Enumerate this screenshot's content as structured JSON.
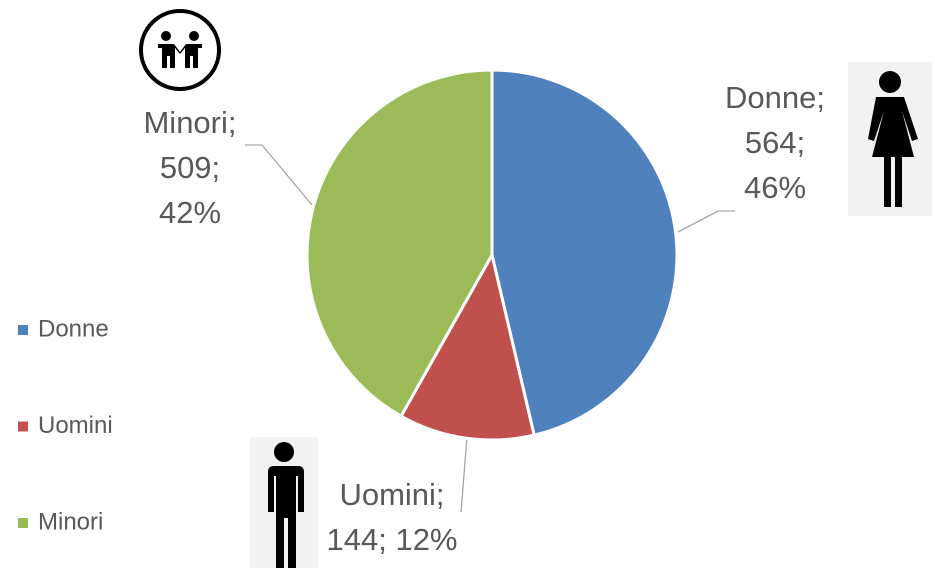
{
  "chart_data": {
    "type": "pie",
    "categories": [
      "Donne",
      "Uomini",
      "Minori"
    ],
    "values": [
      564,
      144,
      509
    ],
    "value_labels": [
      [
        "Donne;",
        "564;",
        "46%"
      ],
      [
        "Uomini;",
        "144; 12%"
      ],
      [
        "Minori;",
        "509;",
        "42%"
      ]
    ],
    "colors": [
      "#4f81bd",
      "#c0504d",
      "#9bbb59"
    ],
    "legend": "left"
  }
}
